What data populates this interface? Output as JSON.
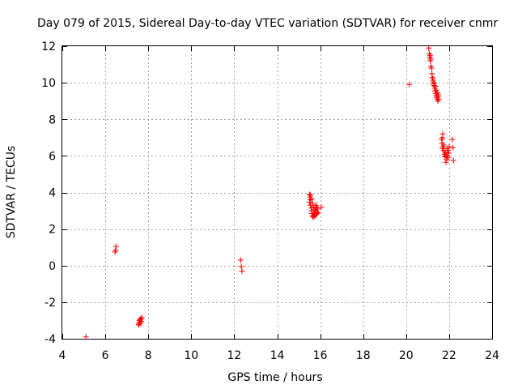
{
  "chart_data": {
    "type": "scatter",
    "title": "Day 079 of 2015, Sidereal Day-to-day VTEC variation (SDTVAR) for receiver cnmr",
    "xlabel": "GPS time / hours",
    "ylabel": "SDTVAR / TECUs",
    "xlim": [
      4,
      24
    ],
    "ylim": [
      -4,
      12
    ],
    "xticks": [
      4,
      6,
      8,
      10,
      12,
      14,
      16,
      18,
      20,
      22,
      24
    ],
    "yticks": [
      -4,
      -2,
      0,
      2,
      4,
      6,
      8,
      10,
      12
    ],
    "grid": true,
    "marker": "+",
    "color": "#ff0000",
    "series": [
      {
        "name": "SDTVAR",
        "points": [
          [
            5.1,
            -3.9
          ],
          [
            6.45,
            0.75
          ],
          [
            6.48,
            0.85
          ],
          [
            6.5,
            1.05
          ],
          [
            7.55,
            -3.2
          ],
          [
            7.58,
            -3.1
          ],
          [
            7.6,
            -3.0
          ],
          [
            7.62,
            -2.95
          ],
          [
            7.65,
            -2.9
          ],
          [
            7.68,
            -3.05
          ],
          [
            7.7,
            -2.85
          ],
          [
            7.57,
            -3.25
          ],
          [
            7.63,
            -3.15
          ],
          [
            12.3,
            0.3
          ],
          [
            12.33,
            -0.05
          ],
          [
            12.36,
            -0.3
          ],
          [
            15.5,
            3.9
          ],
          [
            15.52,
            3.75
          ],
          [
            15.54,
            3.6
          ],
          [
            15.5,
            3.45
          ],
          [
            15.55,
            3.3
          ],
          [
            15.58,
            3.15
          ],
          [
            15.6,
            3.0
          ],
          [
            15.62,
            2.85
          ],
          [
            15.65,
            2.7
          ],
          [
            15.68,
            2.65
          ],
          [
            15.7,
            2.75
          ],
          [
            15.72,
            2.9
          ],
          [
            15.75,
            3.05
          ],
          [
            15.78,
            3.15
          ],
          [
            15.8,
            2.8
          ],
          [
            15.82,
            2.95
          ],
          [
            15.85,
            3.2
          ],
          [
            15.88,
            3.1
          ],
          [
            15.9,
            2.9
          ],
          [
            15.55,
            3.85
          ],
          [
            15.6,
            3.65
          ],
          [
            15.65,
            3.4
          ],
          [
            15.7,
            3.2
          ],
          [
            15.75,
            2.7
          ],
          [
            15.8,
            3.3
          ],
          [
            15.85,
            2.85
          ],
          [
            16.05,
            3.2
          ],
          [
            20.15,
            9.9
          ],
          [
            21.05,
            11.9
          ],
          [
            21.08,
            11.6
          ],
          [
            21.1,
            11.4
          ],
          [
            21.12,
            11.2
          ],
          [
            21.15,
            10.9
          ],
          [
            21.18,
            10.8
          ],
          [
            21.2,
            10.5
          ],
          [
            21.22,
            10.3
          ],
          [
            21.25,
            10.1
          ],
          [
            21.28,
            9.95
          ],
          [
            21.3,
            9.85
          ],
          [
            21.32,
            9.7
          ],
          [
            21.35,
            9.55
          ],
          [
            21.38,
            9.4
          ],
          [
            21.4,
            9.3
          ],
          [
            21.42,
            9.2
          ],
          [
            21.45,
            9.1
          ],
          [
            21.48,
            9.0
          ],
          [
            21.5,
            9.25
          ],
          [
            21.52,
            9.1
          ],
          [
            21.25,
            10.2
          ],
          [
            21.3,
            10.0
          ],
          [
            21.35,
            9.8
          ],
          [
            21.4,
            9.6
          ],
          [
            21.45,
            9.45
          ],
          [
            21.5,
            9.35
          ],
          [
            21.12,
            11.5
          ],
          [
            21.15,
            11.3
          ],
          [
            21.65,
            6.9
          ],
          [
            21.67,
            6.7
          ],
          [
            21.7,
            7.2
          ],
          [
            21.72,
            6.5
          ],
          [
            21.75,
            6.3
          ],
          [
            21.78,
            6.1
          ],
          [
            21.8,
            5.95
          ],
          [
            21.82,
            6.2
          ],
          [
            21.85,
            6.05
          ],
          [
            21.88,
            5.8
          ],
          [
            21.9,
            6.4
          ],
          [
            21.92,
            6.0
          ],
          [
            21.95,
            6.3
          ],
          [
            21.98,
            6.15
          ],
          [
            22.0,
            6.5
          ],
          [
            21.7,
            7.0
          ],
          [
            21.75,
            6.6
          ],
          [
            21.85,
            5.65
          ],
          [
            21.68,
            6.4
          ],
          [
            21.95,
            5.9
          ],
          [
            22.15,
            6.9
          ],
          [
            22.18,
            6.45
          ],
          [
            22.2,
            5.75
          ]
        ]
      }
    ]
  }
}
